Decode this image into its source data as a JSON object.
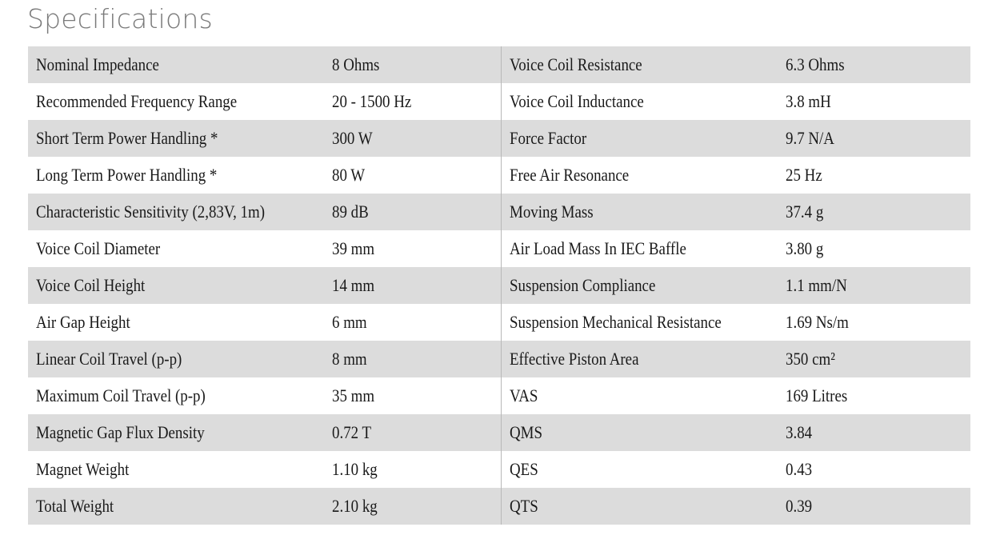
{
  "title": "Specifications",
  "rows": [
    {
      "label1": "Nominal Impedance",
      "value1": "8 Ohms",
      "label2": "Voice Coil Resistance",
      "value2": "6.3 Ohms"
    },
    {
      "label1": "Recommended Frequency Range",
      "value1": "20 - 1500 Hz",
      "label2": "Voice Coil Inductance",
      "value2": "3.8 mH"
    },
    {
      "label1": "Short Term Power Handling *",
      "value1": "300 W",
      "label2": "Force Factor",
      "value2": "9.7 N/A"
    },
    {
      "label1": "Long Term Power Handling *",
      "value1": "80 W",
      "label2": "Free Air Resonance",
      "value2": "25 Hz"
    },
    {
      "label1": "Characteristic Sensitivity (2,83V, 1m)",
      "value1": "89 dB",
      "label2": "Moving Mass",
      "value2": "37.4 g"
    },
    {
      "label1": "Voice Coil Diameter",
      "value1": "39 mm",
      "label2": "Air Load Mass In IEC Baffle",
      "value2": "3.80 g"
    },
    {
      "label1": "Voice Coil Height",
      "value1": "14 mm",
      "label2": "Suspension Compliance",
      "value2": "1.1 mm/N"
    },
    {
      "label1": "Air Gap Height",
      "value1": "6 mm",
      "label2": "Suspension Mechanical Resistance",
      "value2": "1.69 Ns/m"
    },
    {
      "label1": "Linear Coil Travel (p-p)",
      "value1": "8 mm",
      "label2": "Effective Piston Area",
      "value2": "350 cm²"
    },
    {
      "label1": "Maximum Coil Travel (p-p)",
      "value1": "35 mm",
      "label2": "VAS",
      "value2": "169 Litres"
    },
    {
      "label1": "Magnetic Gap Flux Density",
      "value1": "0.72 T",
      "label2": "QMS",
      "value2": "3.84"
    },
    {
      "label1": "Magnet Weight",
      "value1": "1.10 kg",
      "label2": "QES",
      "value2": "0.43"
    },
    {
      "label1": "Total Weight",
      "value1": "2.10 kg",
      "label2": "QTS",
      "value2": "0.39"
    }
  ]
}
